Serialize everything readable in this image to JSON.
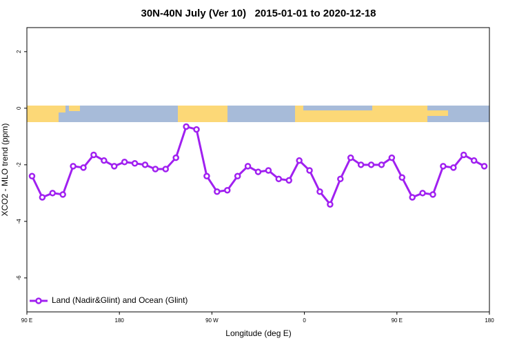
{
  "chart_data": {
    "type": "line",
    "title": "30N-40N July (Ver 10)   2015-01-01 to 2020-12-18",
    "x_label": "Longitude (deg E)",
    "y_label": "XCO2 - MLO trend (ppm)",
    "x": [
      95,
      105,
      115,
      125,
      135,
      145,
      155,
      165,
      175,
      185,
      195,
      205,
      215,
      225,
      235,
      245,
      255,
      265,
      275,
      285,
      295,
      305,
      315,
      325,
      335,
      345,
      355,
      365,
      375,
      385,
      395,
      405,
      415,
      425,
      435,
      445,
      455,
      465,
      475,
      485,
      495,
      505,
      515,
      525,
      535
    ],
    "series": [
      {
        "name": "Land (Nadir&Glint) and Ocean (Glint)",
        "color": "#a020f0",
        "values": [
          -2.4,
          -3.15,
          -3.0,
          -3.05,
          -2.05,
          -2.1,
          -1.65,
          -1.85,
          -2.05,
          -1.9,
          -1.95,
          -2.0,
          -2.15,
          -2.15,
          -1.75,
          -0.65,
          -0.75,
          -2.4,
          -2.95,
          -2.9,
          -2.4,
          -2.05,
          -2.25,
          -2.2,
          -2.5,
          -2.55,
          -1.85,
          -2.2,
          -2.95,
          -3.4,
          -2.5,
          -1.75,
          -2.0,
          -2.0,
          -2.0,
          -1.75,
          -2.45,
          -3.15,
          -3.0,
          -3.05,
          -2.05,
          -2.1,
          -1.65,
          -1.85,
          -2.05
        ]
      }
    ],
    "xlim": [
      90,
      540
    ],
    "xticks": [
      {
        "value": 90,
        "label": "90 E"
      },
      {
        "value": 180,
        "label": "180"
      },
      {
        "value": 270,
        "label": "90 W"
      },
      {
        "value": 360,
        "label": "0"
      },
      {
        "value": 450,
        "label": "90 E"
      },
      {
        "value": 540,
        "label": "180"
      }
    ],
    "ylim": [
      -7.2,
      2.85
    ],
    "yticks": [
      -6,
      -4,
      -2,
      0,
      2
    ],
    "grid": false,
    "legend": "bottom-left"
  }
}
